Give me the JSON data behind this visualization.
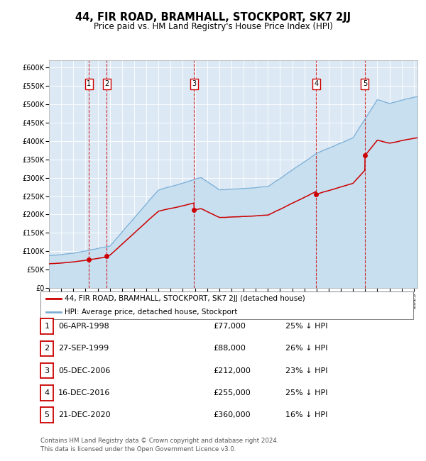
{
  "title": "44, FIR ROAD, BRAMHALL, STOCKPORT, SK7 2JJ",
  "subtitle": "Price paid vs. HM Land Registry's House Price Index (HPI)",
  "title_fontsize": 10.5,
  "subtitle_fontsize": 8.5,
  "background_color": "#ffffff",
  "plot_bg_color": "#dce9f5",
  "ylim": [
    0,
    620000
  ],
  "yticks": [
    0,
    50000,
    100000,
    150000,
    200000,
    250000,
    300000,
    350000,
    400000,
    450000,
    500000,
    550000,
    600000
  ],
  "ytick_labels": [
    "£0",
    "£50K",
    "£100K",
    "£150K",
    "£200K",
    "£250K",
    "£300K",
    "£350K",
    "£400K",
    "£450K",
    "£500K",
    "£550K",
    "£600K"
  ],
  "sale_dates_num": [
    1998.27,
    1999.74,
    2006.92,
    2016.96,
    2020.97
  ],
  "sale_prices": [
    77000,
    88000,
    212000,
    255000,
    360000
  ],
  "sale_labels": [
    "1",
    "2",
    "3",
    "4",
    "5"
  ],
  "sale_color": "#cc0000",
  "hpi_color": "#7aaed6",
  "vline_color": "#cc0000",
  "legend_red_label": "44, FIR ROAD, BRAMHALL, STOCKPORT, SK7 2JJ (detached house)",
  "legend_blue_label": "HPI: Average price, detached house, Stockport",
  "table_rows": [
    {
      "num": "1",
      "date": "06-APR-1998",
      "price": "£77,000",
      "hpi": "25% ↓ HPI"
    },
    {
      "num": "2",
      "date": "27-SEP-1999",
      "price": "£88,000",
      "hpi": "26% ↓ HPI"
    },
    {
      "num": "3",
      "date": "05-DEC-2006",
      "price": "£212,000",
      "hpi": "23% ↓ HPI"
    },
    {
      "num": "4",
      "date": "16-DEC-2016",
      "price": "£255,000",
      "hpi": "25% ↓ HPI"
    },
    {
      "num": "5",
      "date": "21-DEC-2020",
      "price": "£360,000",
      "hpi": "16% ↓ HPI"
    }
  ],
  "footer": "Contains HM Land Registry data © Crown copyright and database right 2024.\nThis data is licensed under the Open Government Licence v3.0.",
  "xlim_start": 1995.0,
  "xlim_end": 2025.3
}
